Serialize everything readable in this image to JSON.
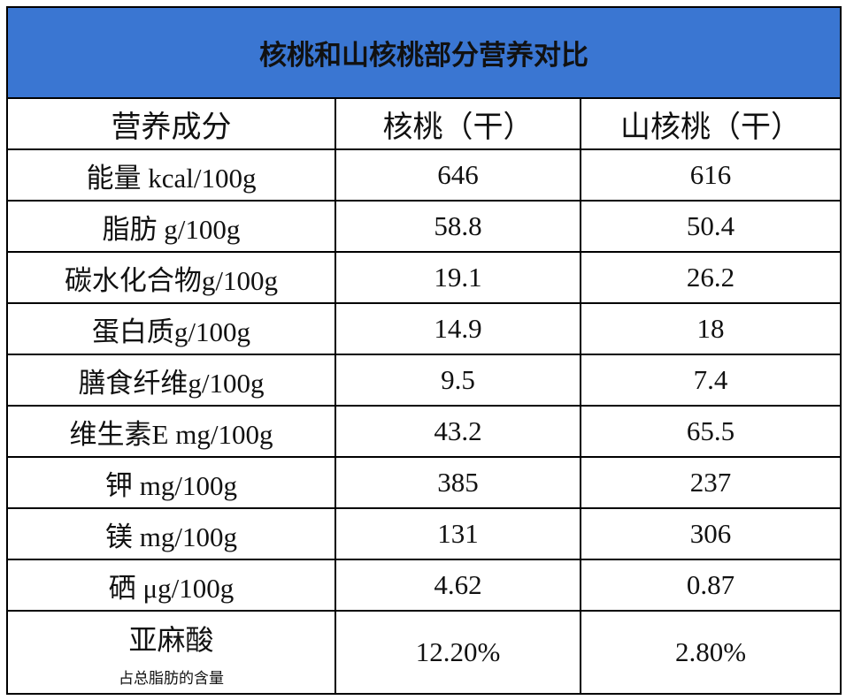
{
  "header": {
    "title": "核桃和山核桃部分营养对比"
  },
  "table": {
    "columns": [
      "营养成分",
      "核桃（干）",
      "山核桃（干）"
    ],
    "rows": [
      [
        "能量 kcal/100g",
        "646",
        "616"
      ],
      [
        "脂肪 g/100g",
        "58.8",
        "50.4"
      ],
      [
        "碳水化合物g/100g",
        "19.1",
        "26.2"
      ],
      [
        "蛋白质g/100g",
        "14.9",
        "18"
      ],
      [
        "膳食纤维g/100g",
        "9.5",
        "7.4"
      ],
      [
        "维生素E mg/100g",
        "43.2",
        "65.5"
      ],
      [
        "钾 mg/100g",
        "385",
        "237"
      ],
      [
        "镁 mg/100g",
        "131",
        "306"
      ],
      [
        "硒 μg/100g",
        "4.62",
        "0.87"
      ],
      [
        {
          "label": "亚麻酸",
          "note": "占总脂肪的含量"
        },
        "12.20%",
        "2.80%"
      ]
    ]
  }
}
